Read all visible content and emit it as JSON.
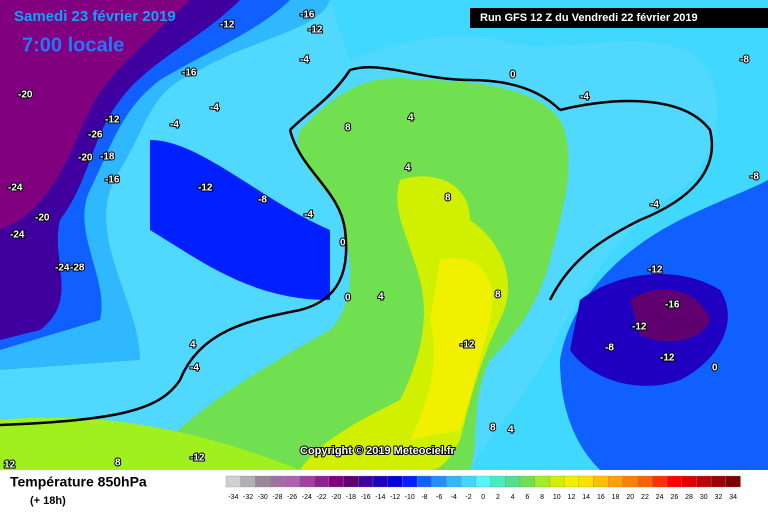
{
  "header": {
    "date": "Samedi 23 février 2019",
    "time": "7:00 locale",
    "run": "Run GFS 12 Z du Vendredi 22 février 2019"
  },
  "copyright": "Copyright © 2019 Meteociel.fr",
  "field": {
    "title": "Température 850hPa",
    "lead": "(+ 18h)"
  },
  "legend": {
    "ticks": [
      -34,
      -32,
      -30,
      -28,
      -26,
      -24,
      -22,
      -20,
      -18,
      -16,
      -14,
      -12,
      -10,
      -8,
      -6,
      -4,
      -2,
      0,
      2,
      4,
      6,
      8,
      10,
      12,
      14,
      16,
      18,
      20,
      22,
      24,
      26,
      28,
      30,
      32,
      34
    ],
    "colors": [
      "#d0d0d0",
      "#b0b0b0",
      "#988898",
      "#a070a0",
      "#b060b0",
      "#a040a0",
      "#902090",
      "#800080",
      "#600070",
      "#4000a0",
      "#2000c0",
      "#0000e0",
      "#0020ff",
      "#1060ff",
      "#2090ff",
      "#30b8ff",
      "#40d8ff",
      "#50f8ff",
      "#40f0c0",
      "#50e090",
      "#70e050",
      "#a0f020",
      "#d0f000",
      "#f0f000",
      "#ffe000",
      "#ffc000",
      "#ffa000",
      "#ff8000",
      "#ff6000",
      "#ff3000",
      "#ff0000",
      "#e00000",
      "#c00000",
      "#a00000",
      "#800000"
    ]
  },
  "contour_labels": [
    "-20",
    "-12",
    "-26",
    "-20",
    "-18",
    "-16",
    "-24",
    "-20",
    "-24",
    "-24",
    "-28",
    "-16",
    "-12",
    "-16",
    "-12",
    "-4",
    "-4",
    "-4",
    "-12",
    "-8",
    "-4",
    "0",
    "0",
    "4",
    "4",
    "8",
    "4",
    "0",
    "8",
    "8",
    "-12",
    "-4",
    "-12",
    "-16",
    "-12",
    "-8",
    "-12",
    "-8",
    "-8",
    "0",
    "4",
    "-4",
    "-12",
    "8",
    "8",
    "4",
    "12",
    "-4"
  ]
}
